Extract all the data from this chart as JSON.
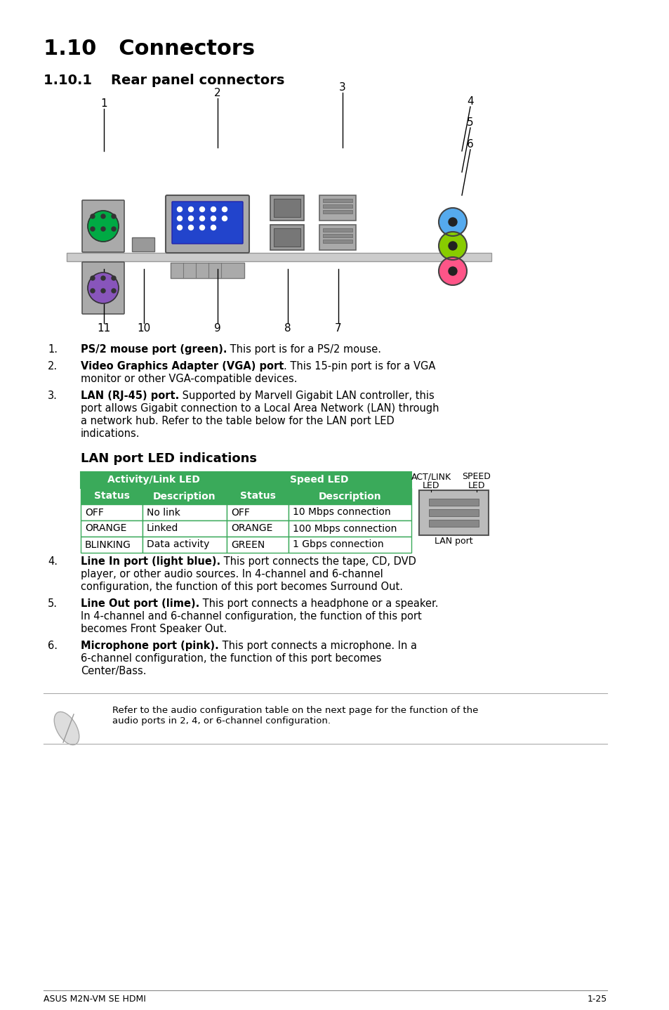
{
  "title": "1.10   Connectors",
  "subtitle": "1.10.1    Rear panel connectors",
  "section_heading": "LAN port LED indications",
  "bg_color": "#ffffff",
  "table_header_bg": "#3aaa5a",
  "table_border": "#3aaa5a",
  "items": [
    {
      "num": "1.",
      "bold": "PS/2 mouse port (green).",
      "normal": " This port is for a PS/2 mouse."
    },
    {
      "num": "2.",
      "bold": "Video Graphics Adapter (VGA) port",
      "normal": ". This 15-pin port is for a VGA monitor or other VGA-compatible devices."
    },
    {
      "num": "3.",
      "bold": "LAN (RJ-45) port.",
      "normal": " Supported by Marvell Gigabit LAN controller, this port allows Gigabit connection to a Local Area Network (LAN) through a network hub. Refer to the table below for the LAN port LED indications."
    },
    {
      "num": "4.",
      "bold": "Line In port (light blue).",
      "normal": " This port connects the tape, CD, DVD player, or other audio sources. In 4-channel and 6-channel configuration, the function of this port becomes Surround Out."
    },
    {
      "num": "5.",
      "bold": "Line Out port (lime).",
      "normal": " This port connects a headphone or a speaker. In 4-channel and 6-channel configuration, the function of this port becomes Front Speaker Out."
    },
    {
      "num": "6.",
      "bold": "Microphone port (pink).",
      "normal": " This port connects a microphone. In a 6-channel configuration, the function of this port  becomes Center/Bass."
    }
  ],
  "table_headers_sub": [
    "Status",
    "Description",
    "Status",
    "Description"
  ],
  "table_rows": [
    [
      "OFF",
      "No link",
      "OFF",
      "10 Mbps connection"
    ],
    [
      "ORANGE",
      "Linked",
      "ORANGE",
      "100 Mbps connection"
    ],
    [
      "BLINKING",
      "Data activity",
      "GREEN",
      "1 Gbps connection"
    ]
  ],
  "note_text": "Refer to the audio configuration table on the next page for the function of the\naudio ports in 2, 4, or 6-channel configuration.",
  "footer_left": "ASUS M2N-VM SE HDMI",
  "footer_right": "1-25"
}
